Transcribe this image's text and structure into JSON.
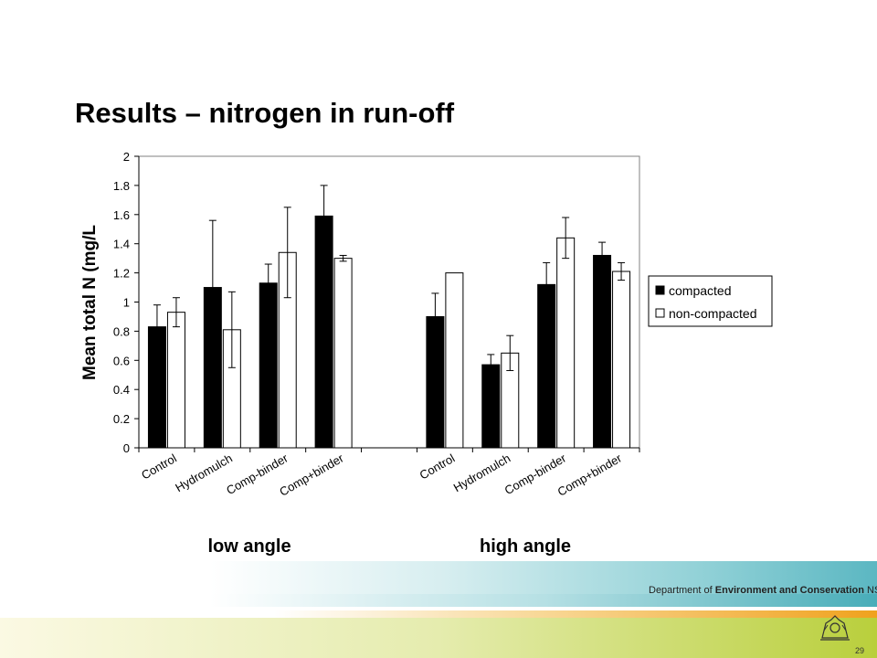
{
  "slide": {
    "title": "Results – nitrogen in run-off",
    "page_number": "29",
    "department": {
      "prefix": "Department of ",
      "bold": "Environment and Conservation",
      "suffix": " NSW"
    }
  },
  "colors": {
    "compacted": "#000000",
    "non_compacted": "#ffffff",
    "footer_teal": "#5bb7c2",
    "footer_orange": "#f0a21e",
    "footer_green": "#b9cf3c"
  },
  "chart_data": {
    "type": "bar",
    "title": "",
    "ylabel": "Mean total N (mg/L",
    "ylim": [
      0,
      2
    ],
    "yticks": [
      "0",
      "0.2",
      "0.4",
      "0.6",
      "0.8",
      "1",
      "1.2",
      "1.4",
      "1.6",
      "1.8",
      "2"
    ],
    "categories": [
      "Control",
      "Hydromulch",
      "Comp-binder",
      "Comp+binder",
      "",
      "Control",
      "Hydromulch",
      "Comp-binder",
      "Comp+binder"
    ],
    "groups": [
      "low angle",
      "high angle"
    ],
    "legend_position": "right",
    "grid": false,
    "series": [
      {
        "name": "compacted",
        "values": [
          0.83,
          1.1,
          1.13,
          1.59,
          null,
          0.9,
          0.57,
          1.12,
          1.32
        ],
        "error": [
          0.15,
          0.46,
          0.13,
          0.21,
          null,
          0.16,
          0.07,
          0.15,
          0.09
        ]
      },
      {
        "name": "non-compacted",
        "values": [
          0.93,
          0.81,
          1.34,
          1.3,
          null,
          1.2,
          0.65,
          1.44,
          1.21
        ],
        "error": [
          0.1,
          0.26,
          0.31,
          0.02,
          null,
          0,
          0.12,
          0.14,
          0.06
        ]
      }
    ]
  }
}
